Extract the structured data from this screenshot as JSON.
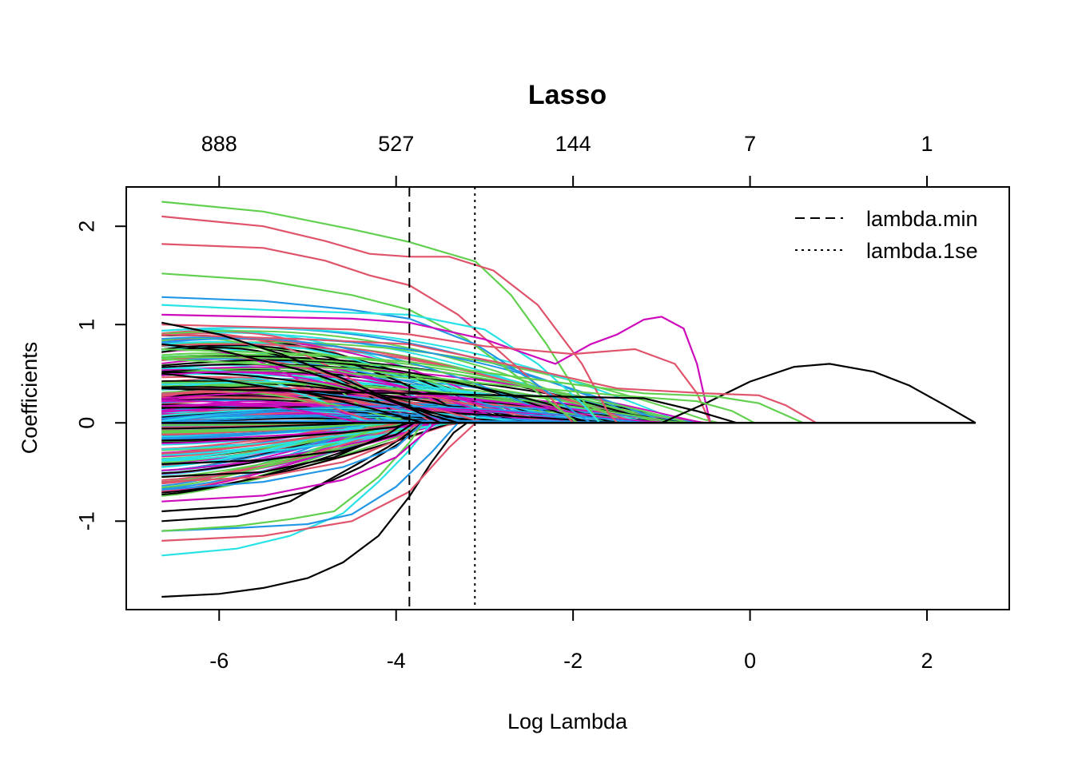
{
  "chart_data": {
    "type": "line",
    "title": "Lasso",
    "xlabel": "Log Lambda",
    "ylabel": "Coefficients",
    "xlim": [
      -7.05,
      2.93
    ],
    "ylim": [
      -1.9,
      2.4
    ],
    "x_ticks": [
      -6,
      -4,
      -2,
      0,
      2
    ],
    "x_tick_labels": [
      "-6",
      "-4",
      "-2",
      "0",
      "2"
    ],
    "y_ticks": [
      -1,
      0,
      1,
      2
    ],
    "y_tick_labels": [
      "-1",
      "0",
      "1",
      "2"
    ],
    "top_axis": {
      "ticks": [
        -6,
        -4,
        -2,
        0,
        2
      ],
      "labels": [
        "888",
        "527",
        "144",
        "7",
        "1"
      ]
    },
    "x_range": [
      -6.65,
      2.55
    ],
    "vlines": [
      {
        "name": "lambda.min",
        "x": -3.85,
        "style": "dashed"
      },
      {
        "name": "lambda.1se",
        "x": -3.11,
        "style": "dotted"
      }
    ],
    "legend": {
      "position": "top-right",
      "entries": [
        {
          "label": "lambda.min",
          "style": "dashed"
        },
        {
          "label": "lambda.1se",
          "style": "dotted"
        }
      ]
    },
    "palette": [
      "#000000",
      "#DF536B",
      "#61D04F",
      "#2297E6",
      "#28E2E5",
      "#CD0BBC"
    ],
    "highlighted_series": [
      {
        "color": "#61D04F",
        "points": [
          [
            -6.65,
            2.25
          ],
          [
            -5.5,
            2.15
          ],
          [
            -4.5,
            1.97
          ],
          [
            -3.85,
            1.84
          ],
          [
            -3.1,
            1.64
          ],
          [
            -2.7,
            1.3
          ],
          [
            -2.3,
            0.8
          ],
          [
            -1.95,
            0.3
          ],
          [
            -1.7,
            0.0
          ]
        ]
      },
      {
        "color": "#DF536B",
        "points": [
          [
            -6.65,
            2.1
          ],
          [
            -5.5,
            2.0
          ],
          [
            -4.8,
            1.85
          ],
          [
            -4.3,
            1.72
          ],
          [
            -3.85,
            1.69
          ],
          [
            -3.4,
            1.69
          ],
          [
            -2.9,
            1.55
          ],
          [
            -2.4,
            1.2
          ],
          [
            -1.9,
            0.6
          ],
          [
            -1.6,
            0.1
          ],
          [
            -1.5,
            0.0
          ]
        ]
      },
      {
        "color": "#DF536B",
        "points": [
          [
            -6.65,
            1.82
          ],
          [
            -5.5,
            1.78
          ],
          [
            -4.8,
            1.65
          ],
          [
            -4.3,
            1.5
          ],
          [
            -3.85,
            1.4
          ],
          [
            -3.3,
            1.1
          ],
          [
            -2.8,
            0.7
          ],
          [
            -2.3,
            0.3
          ],
          [
            -2.0,
            0.0
          ]
        ]
      },
      {
        "color": "#61D04F",
        "points": [
          [
            -6.65,
            1.52
          ],
          [
            -5.5,
            1.45
          ],
          [
            -4.5,
            1.3
          ],
          [
            -3.85,
            1.15
          ],
          [
            -3.2,
            0.85
          ],
          [
            -2.6,
            0.45
          ],
          [
            -2.1,
            0.1
          ],
          [
            -1.95,
            0.0
          ]
        ]
      },
      {
        "color": "#2297E6",
        "points": [
          [
            -6.65,
            1.28
          ],
          [
            -5.5,
            1.24
          ],
          [
            -4.5,
            1.15
          ],
          [
            -3.85,
            1.06
          ],
          [
            -3.1,
            0.8
          ],
          [
            -2.5,
            0.45
          ],
          [
            -2.0,
            0.12
          ],
          [
            -1.8,
            0.0
          ]
        ]
      },
      {
        "color": "#28E2E5",
        "points": [
          [
            -6.65,
            1.2
          ],
          [
            -5.5,
            1.15
          ],
          [
            -4.5,
            1.12
          ],
          [
            -3.85,
            1.1
          ],
          [
            -3.0,
            0.95
          ],
          [
            -2.4,
            0.6
          ],
          [
            -1.9,
            0.2
          ],
          [
            -1.7,
            0.0
          ]
        ]
      },
      {
        "color": "#CD0BBC",
        "points": [
          [
            -6.65,
            1.1
          ],
          [
            -4.5,
            1.06
          ],
          [
            -3.85,
            1.02
          ],
          [
            -3.0,
            0.85
          ],
          [
            -2.2,
            0.6
          ],
          [
            -1.8,
            0.8
          ],
          [
            -1.5,
            0.9
          ],
          [
            -1.2,
            1.05
          ],
          [
            -1.0,
            1.08
          ],
          [
            -0.75,
            0.96
          ],
          [
            -0.6,
            0.6
          ],
          [
            -0.5,
            0.2
          ],
          [
            -0.45,
            0.0
          ]
        ]
      },
      {
        "color": "#DF536B",
        "points": [
          [
            -6.65,
            1.0
          ],
          [
            -4.5,
            0.95
          ],
          [
            -3.85,
            0.9
          ],
          [
            -3.0,
            0.78
          ],
          [
            -2.0,
            0.7
          ],
          [
            -1.3,
            0.75
          ],
          [
            -0.85,
            0.6
          ],
          [
            -0.6,
            0.3
          ],
          [
            -0.45,
            0.0
          ]
        ]
      },
      {
        "color": "#000000",
        "points": [
          [
            -6.65,
            0.0
          ],
          [
            -1.0,
            0.0
          ],
          [
            -0.5,
            0.2
          ],
          [
            0.0,
            0.42
          ],
          [
            0.5,
            0.57
          ],
          [
            0.9,
            0.6
          ],
          [
            1.4,
            0.52
          ],
          [
            1.8,
            0.38
          ],
          [
            2.2,
            0.18
          ],
          [
            2.55,
            0.0
          ]
        ]
      },
      {
        "color": "#DF536B",
        "points": [
          [
            -6.65,
            0.9
          ],
          [
            -5.0,
            0.85
          ],
          [
            -3.85,
            0.8
          ],
          [
            -2.5,
            0.55
          ],
          [
            -1.5,
            0.35
          ],
          [
            -0.5,
            0.3
          ],
          [
            0.1,
            0.28
          ],
          [
            0.4,
            0.18
          ],
          [
            0.75,
            0.0
          ]
        ]
      },
      {
        "color": "#61D04F",
        "points": [
          [
            -6.65,
            0.75
          ],
          [
            -5.0,
            0.7
          ],
          [
            -3.85,
            0.62
          ],
          [
            -2.5,
            0.45
          ],
          [
            -1.2,
            0.3
          ],
          [
            -0.4,
            0.27
          ],
          [
            0.1,
            0.2
          ],
          [
            0.6,
            0.0
          ]
        ]
      },
      {
        "color": "#61D04F",
        "points": [
          [
            -6.65,
            0.65
          ],
          [
            -4.5,
            0.55
          ],
          [
            -3.0,
            0.4
          ],
          [
            -1.5,
            0.28
          ],
          [
            -0.6,
            0.22
          ],
          [
            -0.2,
            0.12
          ],
          [
            0.05,
            0.0
          ]
        ]
      },
      {
        "color": "#000000",
        "points": [
          [
            -6.65,
            1.02
          ],
          [
            -6.0,
            0.9
          ],
          [
            -5.3,
            0.7
          ],
          [
            -4.6,
            0.45
          ],
          [
            -4.1,
            0.25
          ],
          [
            -3.6,
            0.08
          ],
          [
            -3.3,
            0.0
          ]
        ]
      },
      {
        "color": "#000000",
        "points": [
          [
            -6.65,
            0.8
          ],
          [
            -6.0,
            0.74
          ],
          [
            -5.0,
            0.52
          ],
          [
            -4.3,
            0.3
          ],
          [
            -3.85,
            0.15
          ],
          [
            -3.5,
            0.0
          ]
        ]
      },
      {
        "color": "#000000",
        "points": [
          [
            -6.65,
            0.5
          ],
          [
            -6.0,
            0.44
          ],
          [
            -5.0,
            0.3
          ],
          [
            -4.3,
            0.15
          ],
          [
            -3.85,
            0.04
          ],
          [
            -3.7,
            0.0
          ]
        ]
      },
      {
        "color": "#000000",
        "points": [
          [
            -6.65,
            0.35
          ],
          [
            -1.2,
            0.25
          ],
          [
            -0.6,
            0.12
          ],
          [
            -0.15,
            0.0
          ]
        ]
      },
      {
        "color": "#000000",
        "points": [
          [
            -6.65,
            -1.77
          ],
          [
            -6.0,
            -1.74
          ],
          [
            -5.5,
            -1.68
          ],
          [
            -5.0,
            -1.58
          ],
          [
            -4.6,
            -1.42
          ],
          [
            -4.2,
            -1.15
          ],
          [
            -3.85,
            -0.75
          ],
          [
            -3.6,
            -0.4
          ],
          [
            -3.35,
            -0.1
          ],
          [
            -3.2,
            0.0
          ]
        ]
      },
      {
        "color": "#28E2E5",
        "points": [
          [
            -6.65,
            -1.35
          ],
          [
            -5.8,
            -1.28
          ],
          [
            -5.2,
            -1.15
          ],
          [
            -4.6,
            -0.92
          ],
          [
            -4.2,
            -0.6
          ],
          [
            -3.85,
            -0.28
          ],
          [
            -3.6,
            0.0
          ]
        ]
      },
      {
        "color": "#DF536B",
        "points": [
          [
            -6.65,
            -1.2
          ],
          [
            -5.5,
            -1.15
          ],
          [
            -4.5,
            -1.0
          ],
          [
            -3.85,
            -0.7
          ],
          [
            -3.4,
            -0.25
          ],
          [
            -3.1,
            0.0
          ]
        ]
      },
      {
        "color": "#2297E6",
        "points": [
          [
            -6.65,
            -1.1
          ],
          [
            -5.8,
            -1.07
          ],
          [
            -5.0,
            -1.03
          ],
          [
            -4.5,
            -0.93
          ],
          [
            -4.0,
            -0.65
          ],
          [
            -3.6,
            -0.3
          ],
          [
            -3.3,
            0.0
          ]
        ]
      },
      {
        "color": "#61D04F",
        "points": [
          [
            -6.65,
            -1.1
          ],
          [
            -5.8,
            -1.05
          ],
          [
            -5.2,
            -0.98
          ],
          [
            -4.7,
            -0.9
          ],
          [
            -4.2,
            -0.55
          ],
          [
            -3.85,
            -0.2
          ],
          [
            -3.7,
            0.0
          ]
        ]
      },
      {
        "color": "#000000",
        "points": [
          [
            -6.65,
            -1.0
          ],
          [
            -5.8,
            -0.95
          ],
          [
            -5.2,
            -0.8
          ],
          [
            -4.6,
            -0.5
          ],
          [
            -4.1,
            -0.25
          ],
          [
            -3.85,
            -0.1
          ],
          [
            -3.7,
            0.0
          ]
        ]
      },
      {
        "color": "#000000",
        "points": [
          [
            -6.65,
            -0.9
          ],
          [
            -5.8,
            -0.85
          ],
          [
            -5.0,
            -0.7
          ],
          [
            -4.4,
            -0.45
          ],
          [
            -3.95,
            -0.2
          ],
          [
            -3.7,
            0.0
          ]
        ]
      },
      {
        "color": "#CD0BBC",
        "points": [
          [
            -6.65,
            -0.8
          ],
          [
            -5.5,
            -0.74
          ],
          [
            -4.6,
            -0.58
          ],
          [
            -4.0,
            -0.35
          ],
          [
            -3.7,
            -0.12
          ],
          [
            -3.55,
            0.0
          ]
        ]
      },
      {
        "color": "#2297E6",
        "points": [
          [
            -6.65,
            -0.68
          ],
          [
            -5.5,
            -0.6
          ],
          [
            -4.6,
            -0.45
          ],
          [
            -4.0,
            -0.25
          ],
          [
            -3.7,
            0.0
          ]
        ]
      },
      {
        "color": "#DF536B",
        "points": [
          [
            -6.65,
            -0.6
          ],
          [
            -5.5,
            -0.55
          ],
          [
            -4.6,
            -0.4
          ],
          [
            -4.0,
            -0.18
          ],
          [
            -3.75,
            0.0
          ]
        ]
      },
      {
        "color": "#000000",
        "points": [
          [
            -6.65,
            -0.42
          ],
          [
            -5.5,
            -0.38
          ],
          [
            -4.6,
            -0.28
          ],
          [
            -4.0,
            -0.12
          ],
          [
            -3.8,
            0.0
          ]
        ]
      },
      {
        "color": "#000000",
        "points": [
          [
            -6.65,
            -0.18
          ],
          [
            -5.5,
            -0.16
          ],
          [
            -4.6,
            -0.1
          ],
          [
            -4.0,
            -0.04
          ],
          [
            -3.85,
            0.0
          ]
        ]
      },
      {
        "color": "#000000",
        "points": [
          [
            -6.65,
            -0.55
          ],
          [
            -5.5,
            -0.5
          ],
          [
            -4.7,
            -0.35
          ],
          [
            -4.1,
            -0.12
          ],
          [
            -3.9,
            0.0
          ]
        ]
      },
      {
        "color": "#000000",
        "points": [
          [
            -6.65,
            0.0
          ],
          [
            2.55,
            0.0
          ]
        ]
      }
    ]
  }
}
